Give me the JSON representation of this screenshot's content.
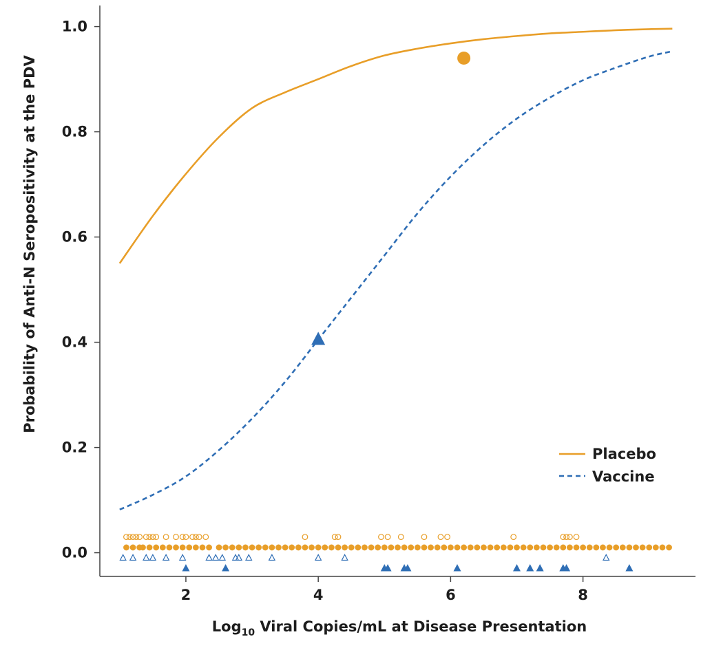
{
  "chart_data": {
    "type": "line",
    "title": "",
    "xlabel": {
      "prefix": "Log",
      "subscript": "10",
      "suffix": " Viral Copies/mL at Disease Presentation"
    },
    "ylabel": "Probability of Anti-N Seropositivity at the PDV",
    "xlim": [
      0.7,
      9.7
    ],
    "ylim": [
      -0.045,
      1.04
    ],
    "x_ticks": [
      2,
      4,
      6,
      8
    ],
    "y_ticks": [
      0.0,
      0.2,
      0.4,
      0.6,
      0.8,
      1.0
    ],
    "x_tick_labels": [
      "2",
      "4",
      "6",
      "8"
    ],
    "y_tick_labels": [
      "0.0",
      "0.2",
      "0.4",
      "0.6",
      "0.8",
      "1.0"
    ],
    "colors": {
      "placebo": "#e89e28",
      "vaccine": "#2f6eb5",
      "axis": "#444444",
      "text": "#1d1d1d"
    },
    "series": [
      {
        "name": "Placebo",
        "style": "solid",
        "color": "#e89e28",
        "x": [
          1.0,
          1.5,
          2.0,
          2.5,
          3.0,
          3.5,
          4.0,
          4.5,
          5.0,
          5.5,
          6.0,
          6.5,
          7.0,
          7.5,
          8.0,
          8.5,
          9.0,
          9.35
        ],
        "y": [
          0.55,
          0.64,
          0.72,
          0.79,
          0.845,
          0.875,
          0.9,
          0.925,
          0.945,
          0.958,
          0.968,
          0.976,
          0.982,
          0.987,
          0.99,
          0.993,
          0.995,
          0.996
        ]
      },
      {
        "name": "Vaccine",
        "style": "dashed",
        "color": "#2f6eb5",
        "x": [
          1.0,
          1.5,
          2.0,
          2.5,
          3.0,
          3.5,
          4.0,
          4.5,
          5.0,
          5.5,
          6.0,
          6.5,
          7.0,
          7.5,
          8.0,
          8.5,
          9.0,
          9.35
        ],
        "y": [
          0.082,
          0.11,
          0.145,
          0.195,
          0.255,
          0.325,
          0.405,
          0.485,
          0.565,
          0.645,
          0.715,
          0.775,
          0.825,
          0.865,
          0.898,
          0.922,
          0.943,
          0.953
        ]
      }
    ],
    "highlight_points": [
      {
        "series": "Placebo",
        "shape": "circle",
        "x": 6.2,
        "y": 0.94
      },
      {
        "series": "Vaccine",
        "shape": "triangle",
        "x": 4.0,
        "y": 0.405
      }
    ],
    "rug_points": [
      {
        "name": "Placebo seropositive",
        "shape": "circle",
        "filled": true,
        "color": "#e89e28",
        "y": 0.01,
        "x": [
          1.1,
          1.2,
          1.3,
          1.35,
          1.45,
          1.55,
          1.65,
          1.75,
          1.85,
          1.95,
          2.05,
          2.15,
          2.25,
          2.35,
          2.5,
          2.6,
          2.7,
          2.8,
          2.9,
          3.0,
          3.1,
          3.2,
          3.3,
          3.4,
          3.5,
          3.6,
          3.7,
          3.8,
          3.9,
          4.0,
          4.1,
          4.2,
          4.3,
          4.4,
          4.5,
          4.6,
          4.7,
          4.8,
          4.9,
          5.0,
          5.1,
          5.2,
          5.3,
          5.4,
          5.5,
          5.6,
          5.7,
          5.8,
          5.9,
          6.0,
          6.1,
          6.2,
          6.3,
          6.4,
          6.5,
          6.6,
          6.7,
          6.8,
          6.9,
          7.0,
          7.1,
          7.2,
          7.3,
          7.4,
          7.5,
          7.6,
          7.7,
          7.8,
          7.9,
          8.0,
          8.1,
          8.2,
          8.3,
          8.4,
          8.5,
          8.6,
          8.7,
          8.8,
          8.9,
          9.0,
          9.1,
          9.2,
          9.3
        ]
      },
      {
        "name": "Placebo seronegative",
        "shape": "circle",
        "filled": false,
        "color": "#e89e28",
        "y": 0.03,
        "x": [
          1.1,
          1.15,
          1.2,
          1.25,
          1.3,
          1.4,
          1.45,
          1.5,
          1.55,
          1.7,
          1.85,
          1.95,
          2.0,
          2.1,
          2.15,
          2.2,
          2.3,
          3.8,
          4.25,
          4.3,
          4.95,
          5.05,
          5.25,
          5.6,
          5.85,
          5.95,
          6.95,
          7.7,
          7.75,
          7.8,
          7.9
        ]
      },
      {
        "name": "Vaccine seronegative",
        "shape": "triangle",
        "filled": false,
        "color": "#2f6eb5",
        "y": -0.01,
        "x": [
          1.05,
          1.2,
          1.4,
          1.5,
          1.7,
          1.95,
          2.35,
          2.45,
          2.55,
          2.75,
          2.8,
          2.95,
          3.3,
          4.0,
          4.4,
          8.35
        ]
      },
      {
        "name": "Vaccine seropositive",
        "shape": "triangle",
        "filled": true,
        "color": "#2f6eb5",
        "y": -0.03,
        "x": [
          2.0,
          2.6,
          5.0,
          5.05,
          5.3,
          5.35,
          6.1,
          7.0,
          7.2,
          7.35,
          7.7,
          7.75,
          8.7
        ]
      }
    ],
    "legend": {
      "position": "right-middle",
      "entries": [
        {
          "label": "Placebo",
          "style": "solid",
          "color": "#e89e28"
        },
        {
          "label": "Vaccine",
          "style": "dashed",
          "color": "#2f6eb5"
        }
      ]
    }
  }
}
